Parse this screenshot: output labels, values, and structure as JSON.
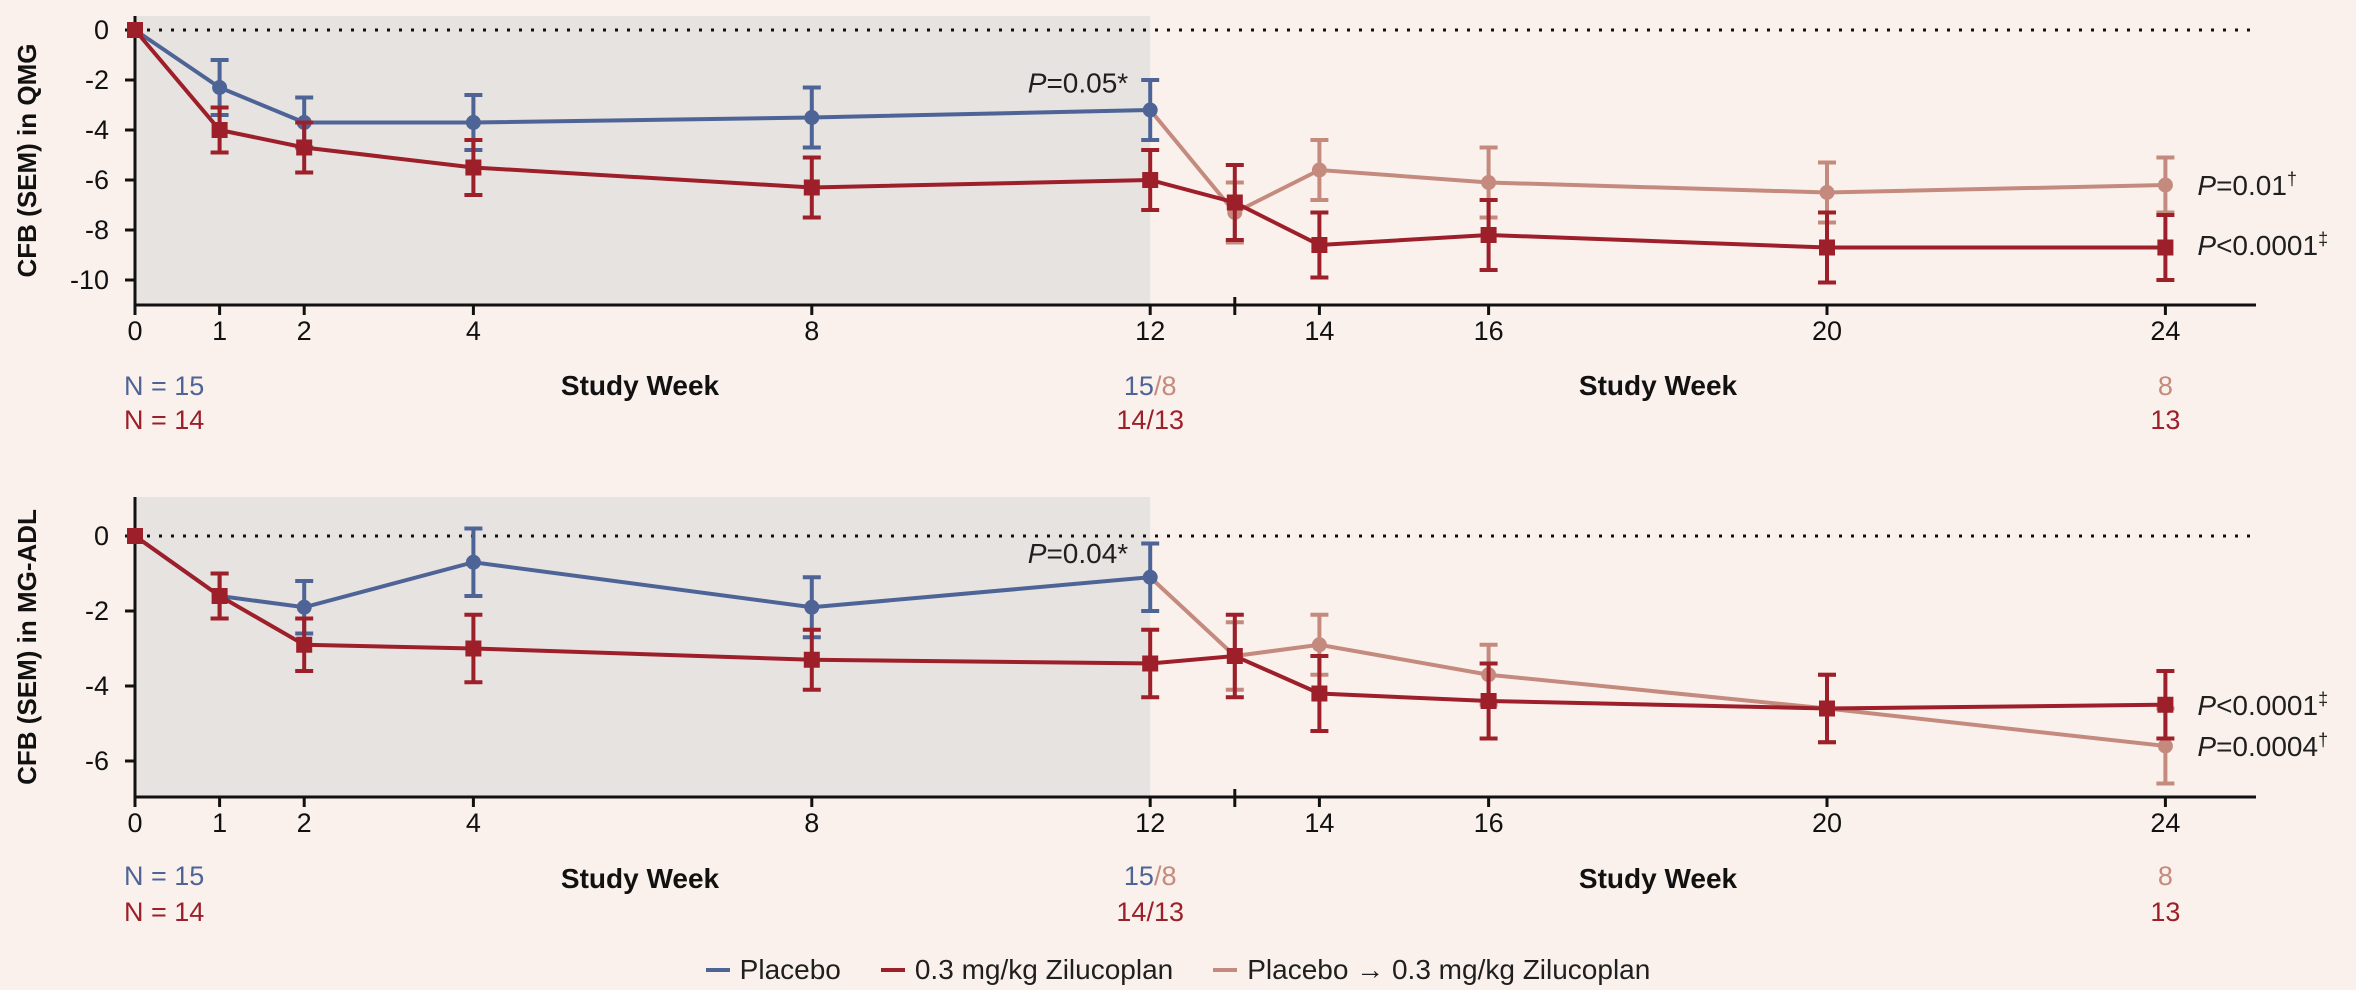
{
  "colors": {
    "placebo": "#4e6496",
    "zilucoplan": "#9c1f2a",
    "switch": "#c48a7d",
    "shade": "#e6e3e0",
    "background": "#faf1ec"
  },
  "legend": [
    {
      "label": "Placebo",
      "color": "#4e6496"
    },
    {
      "label": "0.3 mg/kg Zilucoplan",
      "color": "#9c1f2a"
    },
    {
      "label": "Placebo → 0.3 mg/kg Zilucoplan",
      "color": "#c48a7d"
    }
  ],
  "chart_data": [
    {
      "type": "line",
      "ylabel": "CFB (SEM) in QMG",
      "xlabel": "Study Week",
      "xlim": [
        0,
        25
      ],
      "ylim": [
        -11,
        1
      ],
      "x_ticks": [
        0,
        1,
        2,
        4,
        8,
        12,
        14,
        16,
        20,
        24
      ],
      "y_ticks": [
        0,
        -2,
        -4,
        -6,
        -8,
        -10
      ],
      "shaded_weeks": [
        0,
        12
      ],
      "zero_reference_line": true,
      "series": [
        {
          "name": "Placebo",
          "color": "#4e6496",
          "marker": "circle",
          "x": [
            0,
            1,
            2,
            4,
            8,
            12
          ],
          "y": [
            0,
            -2.3,
            -3.7,
            -3.7,
            -3.5,
            -3.2
          ],
          "sem": [
            0,
            1.1,
            1.0,
            1.1,
            1.2,
            1.2
          ]
        },
        {
          "name": "0.3 mg/kg Zilucoplan",
          "color": "#9c1f2a",
          "marker": "square",
          "x": [
            0,
            1,
            2,
            4,
            8,
            12,
            13,
            14,
            16,
            20,
            24
          ],
          "y": [
            0,
            -4.0,
            -4.7,
            -5.5,
            -6.3,
            -6.0,
            -6.9,
            -8.6,
            -8.2,
            -8.7,
            -8.7
          ],
          "sem": [
            0,
            0.9,
            1.0,
            1.1,
            1.2,
            1.2,
            1.5,
            1.3,
            1.4,
            1.4,
            1.3
          ]
        },
        {
          "name": "Placebo → 0.3 mg/kg Zilucoplan",
          "color": "#c48a7d",
          "marker": "circle",
          "x": [
            12,
            13,
            14,
            16,
            20,
            24
          ],
          "y": [
            -3.2,
            -7.3,
            -5.6,
            -6.1,
            -6.5,
            -6.2
          ],
          "sem": [
            0,
            1.2,
            1.2,
            1.4,
            1.2,
            1.1
          ]
        }
      ],
      "annotations": [
        {
          "p": "P",
          "text": "=0.05*",
          "x": 12,
          "y": -2.1,
          "anchor": "end",
          "color": "#1f1f1f"
        },
        {
          "p": "P",
          "text": "=0.01",
          "sup": "†",
          "x": 24,
          "y": -6.2,
          "anchor": "start",
          "color": "#1f1f1f"
        },
        {
          "p": "P",
          "text": "<0.0001",
          "sup": "‡",
          "x": 24,
          "y": -8.6,
          "anchor": "start",
          "color": "#1f1f1f"
        }
      ],
      "n_rows": {
        "left": [
          {
            "text": "N = 15",
            "color": "#4e6496"
          },
          {
            "text": "N = 14",
            "color": "#9c1f2a"
          }
        ],
        "at_12": [
          {
            "parts": [
              {
                "text": "15",
                "color": "#4e6496"
              },
              {
                "text": "/8",
                "color": "#c48a7d"
              }
            ]
          },
          {
            "parts": [
              {
                "text": "14/13",
                "color": "#9c1f2a"
              }
            ]
          }
        ],
        "at_24": [
          {
            "text": "8",
            "color": "#c48a7d"
          },
          {
            "text": "13",
            "color": "#9c1f2a"
          }
        ]
      }
    },
    {
      "type": "line",
      "ylabel": "CFB (SEM) in MG-ADL",
      "xlabel": "Study Week",
      "xlim": [
        0,
        25
      ],
      "ylim": [
        -7,
        1
      ],
      "x_ticks": [
        0,
        1,
        2,
        4,
        8,
        12,
        14,
        16,
        20,
        24
      ],
      "y_ticks": [
        0,
        -2,
        -4,
        -6
      ],
      "shaded_weeks": [
        0,
        12
      ],
      "zero_reference_line": true,
      "series": [
        {
          "name": "Placebo",
          "color": "#4e6496",
          "marker": "circle",
          "x": [
            0,
            1,
            2,
            4,
            8,
            12
          ],
          "y": [
            0,
            -1.6,
            -1.9,
            -0.7,
            -1.9,
            -1.1
          ],
          "sem": [
            0,
            0.6,
            0.7,
            0.9,
            0.8,
            0.9
          ]
        },
        {
          "name": "0.3 mg/kg Zilucoplan",
          "color": "#9c1f2a",
          "marker": "square",
          "x": [
            0,
            1,
            2,
            4,
            8,
            12,
            13,
            14,
            16,
            20,
            24
          ],
          "y": [
            0,
            -1.6,
            -2.9,
            -3.0,
            -3.3,
            -3.4,
            -3.2,
            -4.2,
            -4.4,
            -4.6,
            -4.5
          ],
          "sem": [
            0,
            0.6,
            0.7,
            0.9,
            0.8,
            0.9,
            1.1,
            1.0,
            1.0,
            0.9,
            0.9
          ]
        },
        {
          "name": "Placebo → 0.3 mg/kg Zilucoplan",
          "color": "#c48a7d",
          "marker": "circle",
          "x": [
            12,
            13,
            14,
            16,
            20,
            24
          ],
          "y": [
            -1.1,
            -3.2,
            -2.9,
            -3.7,
            -4.6,
            -5.6
          ],
          "sem": [
            0,
            0.9,
            0.8,
            0.8,
            0.9,
            1.0
          ]
        }
      ],
      "annotations": [
        {
          "p": "P",
          "text": "=0.04*",
          "x": 12,
          "y": -0.45,
          "anchor": "end",
          "color": "#1f1f1f"
        },
        {
          "p": "P",
          "text": "<0.0001",
          "sup": "‡",
          "x": 24,
          "y": -4.5,
          "anchor": "start",
          "color": "#1f1f1f"
        },
        {
          "p": "P",
          "text": "=0.0004",
          "sup": "†",
          "x": 24,
          "y": -5.6,
          "anchor": "start",
          "color": "#1f1f1f"
        }
      ],
      "n_rows": {
        "left": [
          {
            "text": "N = 15",
            "color": "#4e6496"
          },
          {
            "text": "N = 14",
            "color": "#9c1f2a"
          }
        ],
        "at_12": [
          {
            "parts": [
              {
                "text": "15",
                "color": "#4e6496"
              },
              {
                "text": "/8",
                "color": "#c48a7d"
              }
            ]
          },
          {
            "parts": [
              {
                "text": "14/13",
                "color": "#9c1f2a"
              }
            ]
          }
        ],
        "at_24": [
          {
            "text": "8",
            "color": "#c48a7d"
          },
          {
            "text": "13",
            "color": "#9c1f2a"
          }
        ]
      }
    }
  ]
}
